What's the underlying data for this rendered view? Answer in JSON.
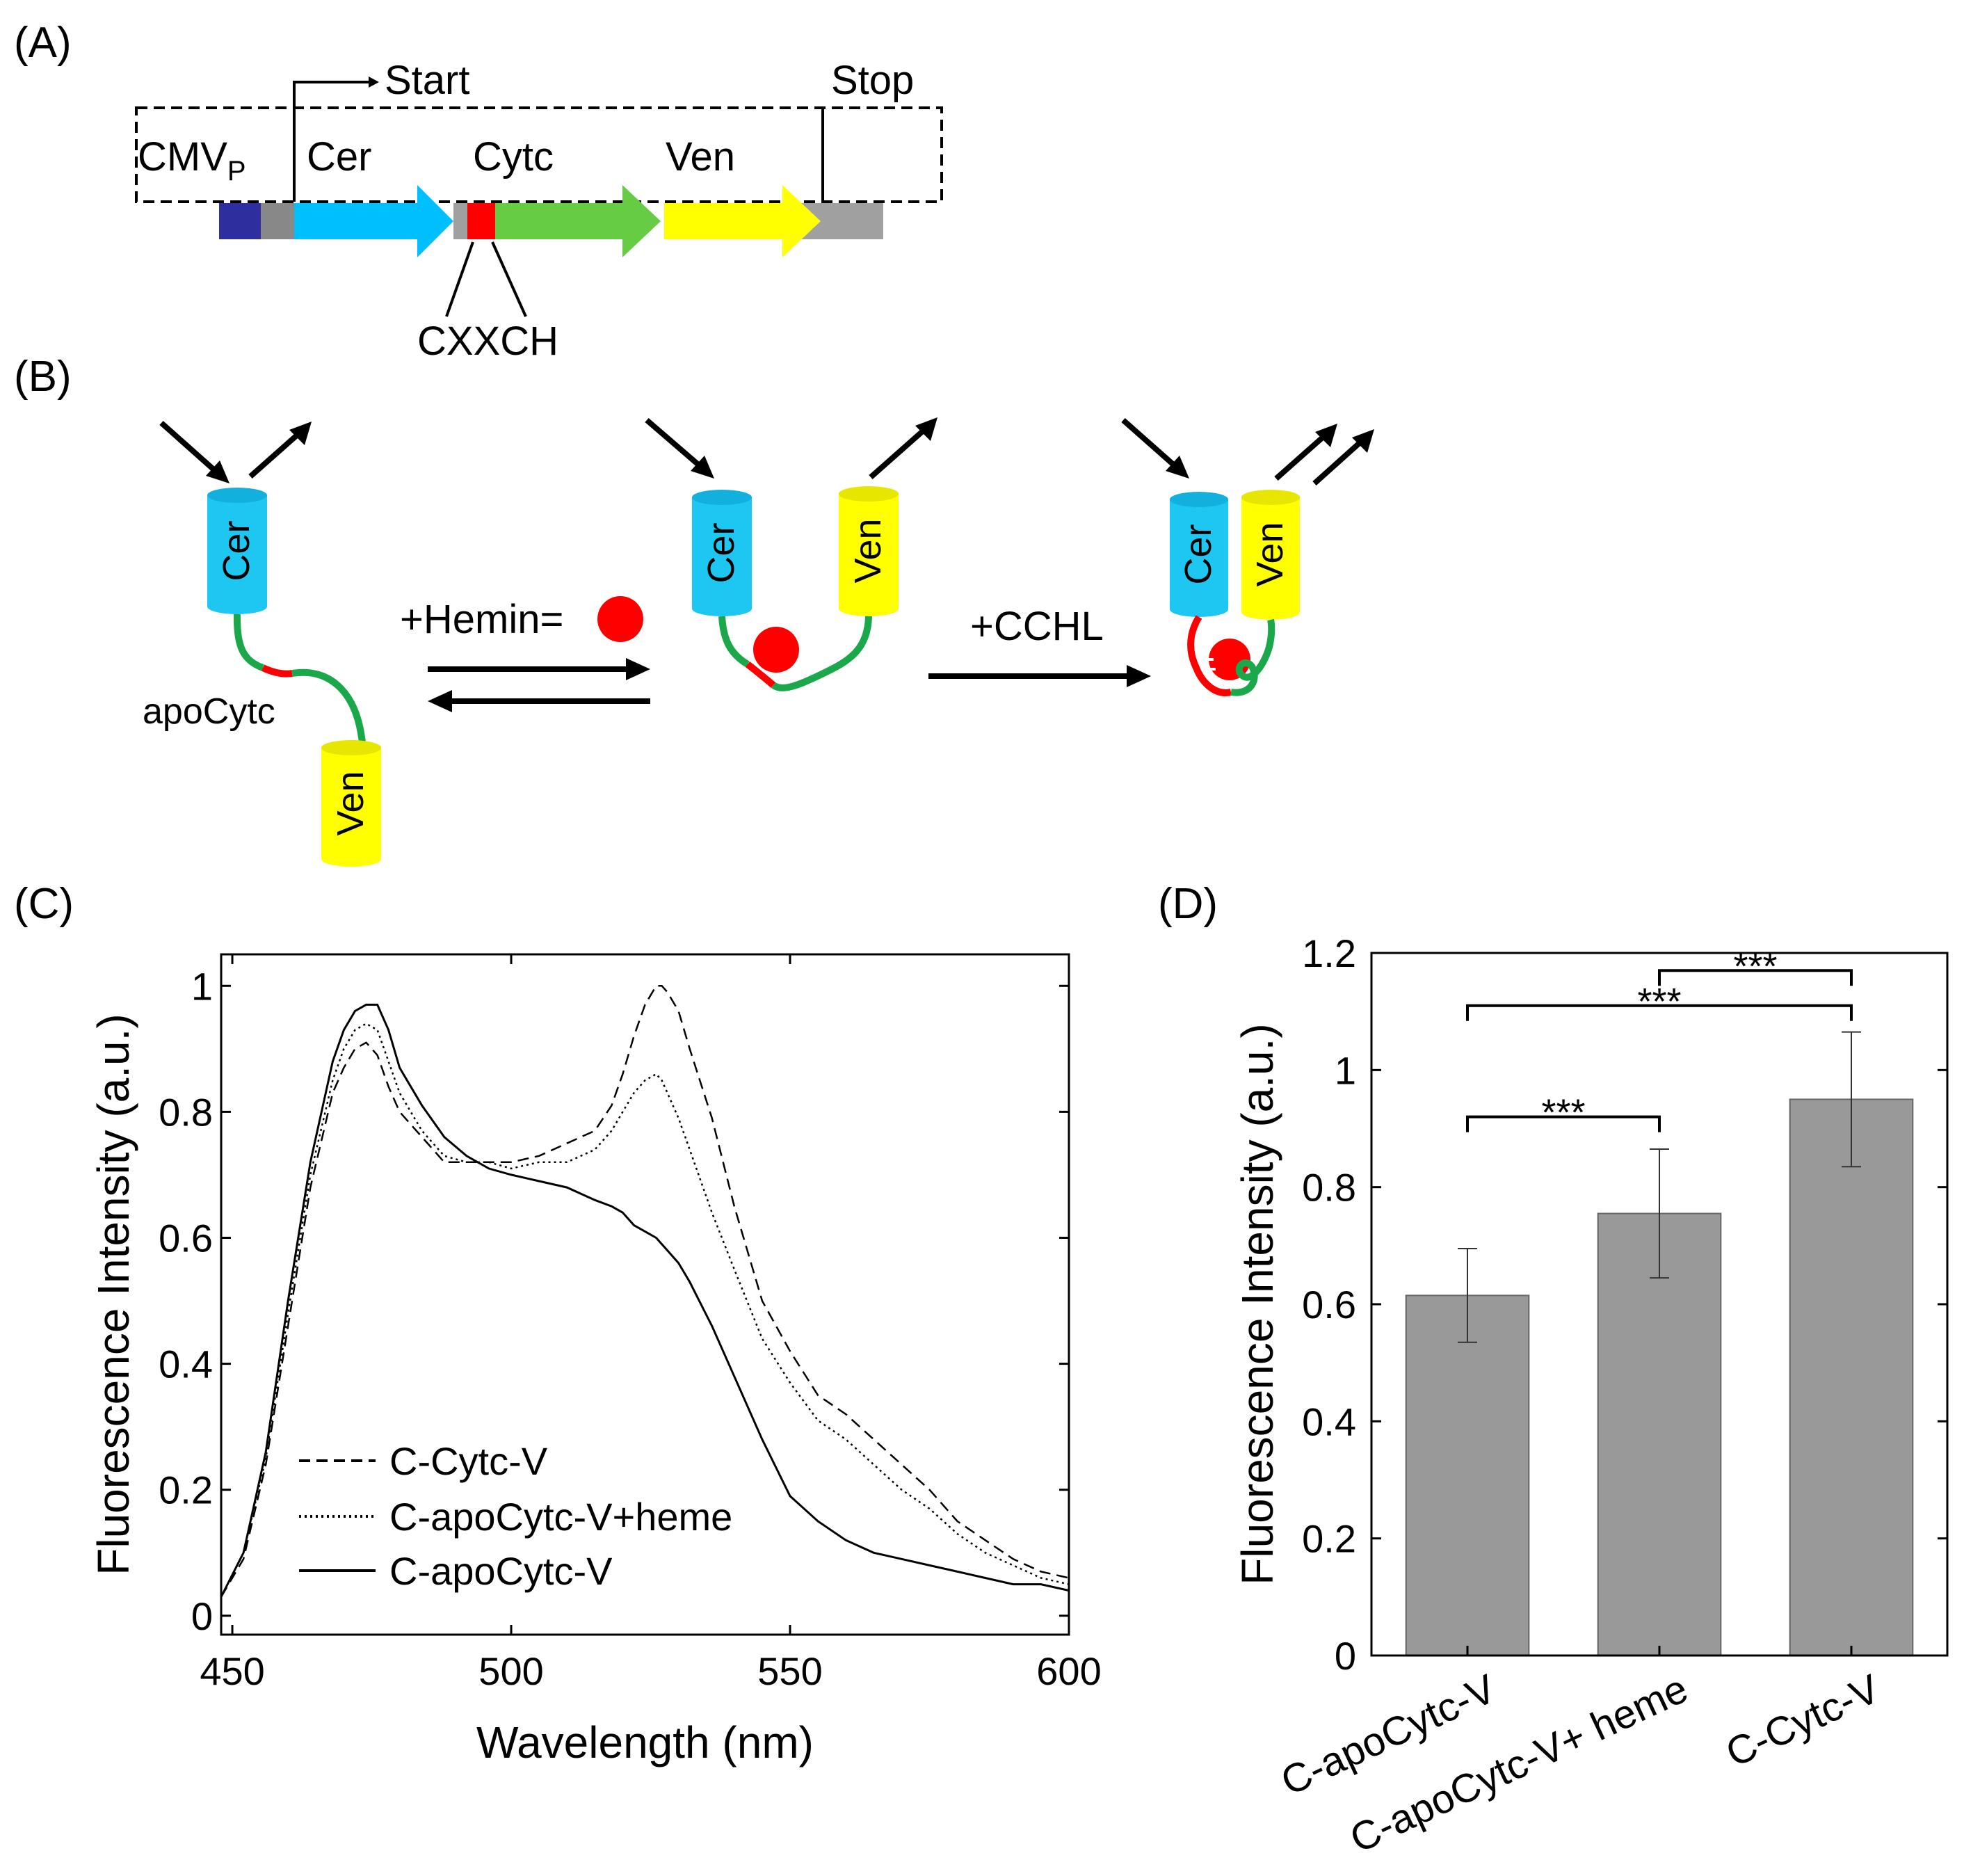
{
  "panels": {
    "a": {
      "label": "(A)",
      "start": "Start",
      "stop": "Stop",
      "cmv_main": "CMV",
      "cmv_sub": "P",
      "cer": "Cer",
      "cytc": "Cytc",
      "ven": "Ven",
      "motif": "CXXCH",
      "colors": {
        "cmv": "#2e2e9e",
        "gray": "#a0a0a0",
        "dark_gray": "#888888",
        "cer": "#00bfff",
        "cytc": "#66cc44",
        "ven": "#ffff00",
        "red": "#ff0000"
      }
    },
    "b": {
      "label": "(B)",
      "cer": "Cer",
      "ven": "Ven",
      "apo": "apoCytc",
      "hemin": "+Hemin=",
      "cchl": "+CCHL",
      "colors": {
        "cer": "#1ec6f2",
        "ven": "#ffff00",
        "linker": "#1aa84a",
        "red": "#ff0000"
      }
    },
    "c": {
      "label": "(C)"
    },
    "d": {
      "label": "(D)"
    }
  },
  "chart_data": [
    {
      "type": "line",
      "title": "",
      "xlabel": "Wavelength (nm)",
      "ylabel": "Fluorescence Intensity (a.u.)",
      "xlim": [
        448,
        600
      ],
      "ylim": [
        -0.03,
        1.05
      ],
      "xticks": [
        "450",
        "500",
        "550",
        "600"
      ],
      "yticks": [
        "0",
        "0.2",
        "0.4",
        "0.6",
        "0.8",
        "1"
      ],
      "legend": "bottom-left",
      "series": [
        {
          "name": "C-Cytc-V",
          "style": "dashed",
          "x": [
            448,
            452,
            456,
            460,
            464,
            468,
            470,
            472,
            474,
            476,
            478,
            480,
            484,
            488,
            492,
            496,
            500,
            505,
            510,
            515,
            518,
            520,
            522,
            524,
            526,
            527,
            528,
            530,
            532,
            536,
            540,
            545,
            550,
            555,
            560,
            565,
            570,
            575,
            580,
            585,
            590,
            595,
            600
          ],
          "y": [
            0.03,
            0.09,
            0.24,
            0.46,
            0.68,
            0.83,
            0.87,
            0.9,
            0.91,
            0.89,
            0.84,
            0.8,
            0.76,
            0.72,
            0.72,
            0.72,
            0.72,
            0.73,
            0.75,
            0.77,
            0.81,
            0.86,
            0.92,
            0.97,
            1.0,
            1.0,
            0.99,
            0.96,
            0.9,
            0.79,
            0.65,
            0.5,
            0.42,
            0.35,
            0.32,
            0.28,
            0.24,
            0.2,
            0.15,
            0.12,
            0.09,
            0.07,
            0.06
          ]
        },
        {
          "name": "C-apoCytc-V+heme",
          "style": "dotted",
          "x": [
            448,
            452,
            456,
            460,
            464,
            468,
            470,
            472,
            474,
            476,
            478,
            480,
            484,
            488,
            492,
            496,
            500,
            505,
            510,
            515,
            518,
            520,
            522,
            524,
            526,
            527,
            528,
            530,
            532,
            536,
            540,
            545,
            550,
            555,
            560,
            565,
            570,
            575,
            580,
            585,
            590,
            595,
            600
          ],
          "y": [
            0.03,
            0.1,
            0.25,
            0.48,
            0.7,
            0.85,
            0.9,
            0.93,
            0.94,
            0.93,
            0.88,
            0.83,
            0.77,
            0.73,
            0.72,
            0.72,
            0.71,
            0.72,
            0.72,
            0.74,
            0.77,
            0.8,
            0.83,
            0.85,
            0.86,
            0.85,
            0.83,
            0.79,
            0.74,
            0.64,
            0.55,
            0.44,
            0.37,
            0.31,
            0.28,
            0.24,
            0.2,
            0.17,
            0.13,
            0.1,
            0.08,
            0.06,
            0.05
          ]
        },
        {
          "name": "C-apoCytc-V",
          "style": "solid",
          "x": [
            448,
            452,
            456,
            460,
            464,
            468,
            470,
            472,
            474,
            476,
            478,
            480,
            484,
            488,
            492,
            496,
            500,
            505,
            510,
            515,
            518,
            520,
            522,
            524,
            526,
            528,
            530,
            532,
            536,
            540,
            545,
            550,
            555,
            560,
            565,
            570,
            575,
            580,
            585,
            590,
            595,
            600
          ],
          "y": [
            0.03,
            0.1,
            0.26,
            0.5,
            0.72,
            0.88,
            0.93,
            0.96,
            0.97,
            0.97,
            0.93,
            0.87,
            0.81,
            0.76,
            0.73,
            0.71,
            0.7,
            0.69,
            0.68,
            0.66,
            0.65,
            0.64,
            0.62,
            0.61,
            0.6,
            0.58,
            0.56,
            0.53,
            0.46,
            0.38,
            0.28,
            0.19,
            0.15,
            0.12,
            0.1,
            0.09,
            0.08,
            0.07,
            0.06,
            0.05,
            0.05,
            0.04
          ]
        }
      ]
    },
    {
      "type": "bar",
      "title": "",
      "xlabel": "",
      "ylabel": "Fluorescence Intensity (a.u.)",
      "ylim": [
        0,
        1.2
      ],
      "yticks": [
        "0",
        "0.2",
        "0.4",
        "0.6",
        "0.8",
        "1",
        "1.2"
      ],
      "categories": [
        "C-apoCytc-V",
        "C-apoCytc-V+ heme",
        "C-Cytc-V"
      ],
      "values": [
        0.615,
        0.755,
        0.95
      ],
      "errors": [
        0.08,
        0.11,
        0.115
      ],
      "bar_color": "#999999",
      "significance": [
        {
          "from": 0,
          "to": 1,
          "label": "***"
        },
        {
          "from": 0,
          "to": 2,
          "label": "***"
        },
        {
          "from": 1,
          "to": 2,
          "label": "***"
        }
      ]
    }
  ]
}
